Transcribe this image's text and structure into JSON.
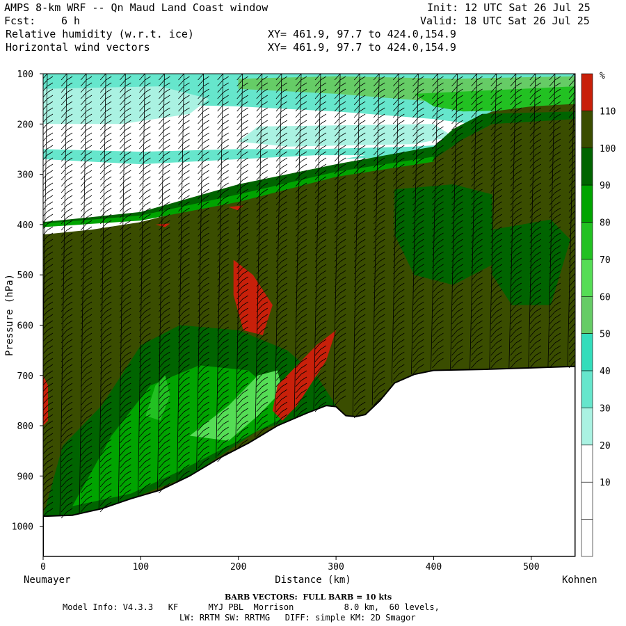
{
  "header": {
    "title": "AMPS 8-km WRF -- Qn Maud Land Coast window",
    "init": "Init: 12 UTC Sat 26 Jul 25",
    "fcst_label": "Fcst:",
    "fcst_value": "6 h",
    "valid": "Valid: 18 UTC Sat 26 Jul 25",
    "field1": "Relative humidity (w.r.t. ice)",
    "field2": "Horizontal wind vectors",
    "xy1": "XY= 461.9, 97.7 to 424.0,154.9",
    "xy2": "XY= 461.9, 97.7 to 424.0,154.9"
  },
  "footer": {
    "barb_note": "BARB VECTORS:  FULL BARB = 10 kts",
    "model_line1": "Model Info: V4.3.3   KF      MYJ PBL  Morrison          8.0 km,  60 levels,",
    "model_line2": "LW: RRTM SW: RRTMG   DIFF: simple KM: 2D Smagor"
  },
  "colors": {
    "olive": "#3a4d00",
    "dark_green": "#006400",
    "green90": "#00a400",
    "green80": "#22c122",
    "green70": "#55dd55",
    "green60": "#66cc66",
    "teal50": "#33ddbb",
    "teal40": "#66e6cc",
    "teal30": "#aaf2e2",
    "red": "#c8200a",
    "ground": "#ffffff"
  },
  "chart_data": {
    "type": "cross-section contour",
    "xlabel": "Distance (km)",
    "ylabel": "Pressure (hPa)",
    "x_ticks": [
      0,
      100,
      200,
      300,
      400,
      500
    ],
    "y_ticks": [
      100,
      200,
      300,
      400,
      500,
      600,
      700,
      800,
      900,
      1000
    ],
    "xlim": [
      0,
      545
    ],
    "ylim": [
      100,
      1060
    ],
    "left_endpoint": "Neumayer",
    "right_endpoint": "Kohnen",
    "colorbar": {
      "unit": "%",
      "levels": [
        10,
        20,
        30,
        40,
        50,
        60,
        70,
        80,
        90,
        100,
        110
      ],
      "colors": [
        "#ffffff",
        "#ffffff",
        "#ffffff",
        "#aaf2e2",
        "#66e6cc",
        "#33ddbb",
        "#66cc66",
        "#55dd55",
        "#22c122",
        "#00a400",
        "#006400",
        "#3a4d00",
        "#c8200a"
      ]
    },
    "terrain_pressure": [
      [
        0,
        980
      ],
      [
        30,
        978
      ],
      [
        60,
        965
      ],
      [
        90,
        945
      ],
      [
        120,
        928
      ],
      [
        150,
        900
      ],
      [
        180,
        865
      ],
      [
        210,
        835
      ],
      [
        240,
        800
      ],
      [
        270,
        775
      ],
      [
        290,
        760
      ],
      [
        300,
        762
      ],
      [
        310,
        780
      ],
      [
        320,
        782
      ],
      [
        330,
        778
      ],
      [
        345,
        750
      ],
      [
        360,
        715
      ],
      [
        380,
        698
      ],
      [
        400,
        690
      ],
      [
        450,
        688
      ],
      [
        500,
        685
      ],
      [
        545,
        682
      ]
    ],
    "saturated_top_pressure": [
      [
        0,
        420
      ],
      [
        50,
        410
      ],
      [
        100,
        395
      ],
      [
        150,
        370
      ],
      [
        200,
        340
      ],
      [
        250,
        305
      ],
      [
        300,
        290
      ],
      [
        350,
        275
      ],
      [
        400,
        255
      ],
      [
        420,
        235
      ],
      [
        430,
        200
      ],
      [
        460,
        175
      ],
      [
        500,
        165
      ],
      [
        545,
        160
      ]
    ],
    "barb_columns_km": [
      0,
      20,
      40,
      60,
      80,
      100,
      120,
      140,
      160,
      180,
      200,
      220,
      240,
      260,
      280,
      300,
      320,
      340,
      360,
      380,
      400,
      420,
      440,
      460,
      480,
      500,
      520,
      540
    ]
  }
}
